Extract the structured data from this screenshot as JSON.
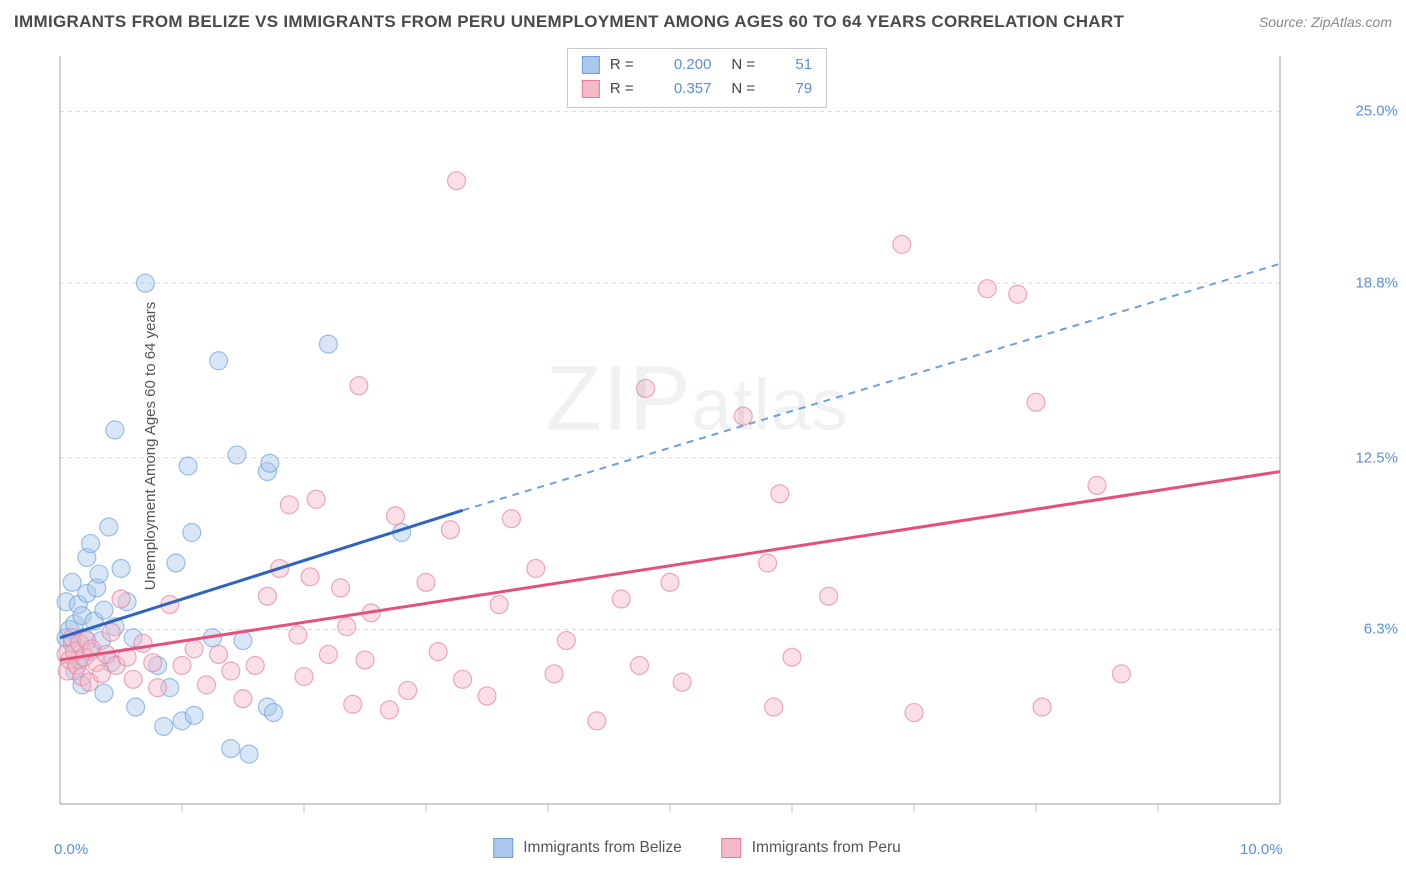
{
  "title": "IMMIGRANTS FROM BELIZE VS IMMIGRANTS FROM PERU UNEMPLOYMENT AMONG AGES 60 TO 64 YEARS CORRELATION CHART",
  "source": "Source: ZipAtlas.com",
  "y_axis_label": "Unemployment Among Ages 60 to 64 years",
  "watermark": "ZIPatlas",
  "chart": {
    "type": "scatter",
    "xlim": [
      0.0,
      10.0
    ],
    "ylim": [
      0.0,
      27.0
    ],
    "x_ticks": [
      0.0,
      10.0
    ],
    "x_tick_labels": [
      "0.0%",
      "10.0%"
    ],
    "x_minor_ticks": [
      1.0,
      2.0,
      3.0,
      4.0,
      5.0,
      6.0,
      7.0,
      8.0,
      9.0
    ],
    "y_ticks": [
      6.3,
      12.5,
      18.8,
      25.0
    ],
    "y_tick_labels": [
      "6.3%",
      "12.5%",
      "18.8%",
      "25.0%"
    ],
    "background_color": "#ffffff",
    "grid_color": "#d9d9d9",
    "grid_dash": "4 4",
    "axis_color": "#bfbfbf",
    "marker_radius": 9,
    "marker_opacity": 0.45,
    "label_color": "#5b8fd6",
    "label_fontsize": 15
  },
  "legend_top": {
    "rows": [
      {
        "swatch_fill": "#a9c7ec",
        "swatch_stroke": "#6fa0dd",
        "r_label": "R =",
        "r_value": "0.200",
        "n_label": "N =",
        "n_value": "51"
      },
      {
        "swatch_fill": "#f3b9c7",
        "swatch_stroke": "#e37f9b",
        "r_label": "R =",
        "r_value": "0.357",
        "n_label": "N =",
        "n_value": "79"
      }
    ]
  },
  "legend_bottom": {
    "items": [
      {
        "swatch_fill": "#a9c7ec",
        "swatch_stroke": "#6fa0dd",
        "label": "Immigrants from Belize"
      },
      {
        "swatch_fill": "#f3b9c7",
        "swatch_stroke": "#e37f9b",
        "label": "Immigrants from Peru"
      }
    ]
  },
  "series": [
    {
      "name": "Immigrants from Belize",
      "color_fill": "#a9c7ec",
      "color_stroke": "#6fa0dd",
      "trend": {
        "solid": {
          "x1": 0.0,
          "y1": 6.0,
          "x2": 3.3,
          "y2": 10.6,
          "stroke": "#2e64c0",
          "width": 3
        },
        "dashed": {
          "x1": 3.3,
          "y1": 10.6,
          "x2": 10.0,
          "y2": 19.5,
          "stroke": "#6fa0dd",
          "width": 2,
          "dash": "7 6"
        }
      },
      "points": [
        [
          0.05,
          6.0
        ],
        [
          0.05,
          7.3
        ],
        [
          0.08,
          6.3
        ],
        [
          0.1,
          5.8
        ],
        [
          0.1,
          8.0
        ],
        [
          0.12,
          6.5
        ],
        [
          0.12,
          4.8
        ],
        [
          0.15,
          7.2
        ],
        [
          0.15,
          5.2
        ],
        [
          0.18,
          6.8
        ],
        [
          0.18,
          4.3
        ],
        [
          0.2,
          6.0
        ],
        [
          0.22,
          7.6
        ],
        [
          0.22,
          8.9
        ],
        [
          0.25,
          5.5
        ],
        [
          0.25,
          9.4
        ],
        [
          0.28,
          6.6
        ],
        [
          0.3,
          7.8
        ],
        [
          0.32,
          8.3
        ],
        [
          0.34,
          5.9
        ],
        [
          0.36,
          4.0
        ],
        [
          0.36,
          7.0
        ],
        [
          0.4,
          10.0
        ],
        [
          0.42,
          5.1
        ],
        [
          0.45,
          6.4
        ],
        [
          0.45,
          13.5
        ],
        [
          0.5,
          8.5
        ],
        [
          0.55,
          7.3
        ],
        [
          0.6,
          6.0
        ],
        [
          0.62,
          3.5
        ],
        [
          0.7,
          18.8
        ],
        [
          0.8,
          5.0
        ],
        [
          0.85,
          2.8
        ],
        [
          0.9,
          4.2
        ],
        [
          0.95,
          8.7
        ],
        [
          1.0,
          3.0
        ],
        [
          1.05,
          12.2
        ],
        [
          1.08,
          9.8
        ],
        [
          1.1,
          3.2
        ],
        [
          1.25,
          6.0
        ],
        [
          1.3,
          16.0
        ],
        [
          1.4,
          2.0
        ],
        [
          1.45,
          12.6
        ],
        [
          1.5,
          5.9
        ],
        [
          1.55,
          1.8
        ],
        [
          1.7,
          12.0
        ],
        [
          1.7,
          3.5
        ],
        [
          1.72,
          12.3
        ],
        [
          1.75,
          3.3
        ],
        [
          2.2,
          16.6
        ],
        [
          2.8,
          9.8
        ]
      ]
    },
    {
      "name": "Immigrants from Peru",
      "color_fill": "#f3b9c7",
      "color_stroke": "#e37f9b",
      "trend": {
        "solid": {
          "x1": 0.0,
          "y1": 5.2,
          "x2": 10.0,
          "y2": 12.0,
          "stroke": "#e54f7b",
          "width": 3
        }
      },
      "points": [
        [
          0.05,
          5.4
        ],
        [
          0.06,
          4.8
        ],
        [
          0.08,
          5.2
        ],
        [
          0.1,
          6.0
        ],
        [
          0.12,
          5.5
        ],
        [
          0.14,
          5.0
        ],
        [
          0.16,
          5.8
        ],
        [
          0.18,
          4.6
        ],
        [
          0.2,
          5.3
        ],
        [
          0.22,
          5.9
        ],
        [
          0.24,
          4.4
        ],
        [
          0.26,
          5.6
        ],
        [
          0.3,
          5.1
        ],
        [
          0.34,
          4.7
        ],
        [
          0.38,
          5.4
        ],
        [
          0.42,
          6.2
        ],
        [
          0.46,
          5.0
        ],
        [
          0.5,
          7.4
        ],
        [
          0.55,
          5.3
        ],
        [
          0.6,
          4.5
        ],
        [
          0.68,
          5.8
        ],
        [
          0.76,
          5.1
        ],
        [
          0.8,
          4.2
        ],
        [
          0.9,
          7.2
        ],
        [
          1.0,
          5.0
        ],
        [
          1.1,
          5.6
        ],
        [
          1.2,
          4.3
        ],
        [
          1.3,
          5.4
        ],
        [
          1.4,
          4.8
        ],
        [
          1.5,
          3.8
        ],
        [
          1.6,
          5.0
        ],
        [
          1.7,
          7.5
        ],
        [
          1.8,
          8.5
        ],
        [
          1.88,
          10.8
        ],
        [
          1.95,
          6.1
        ],
        [
          2.0,
          4.6
        ],
        [
          2.05,
          8.2
        ],
        [
          2.1,
          11.0
        ],
        [
          2.2,
          5.4
        ],
        [
          2.3,
          7.8
        ],
        [
          2.35,
          6.4
        ],
        [
          2.4,
          3.6
        ],
        [
          2.45,
          15.1
        ],
        [
          2.5,
          5.2
        ],
        [
          2.55,
          6.9
        ],
        [
          2.7,
          3.4
        ],
        [
          2.75,
          10.4
        ],
        [
          2.85,
          4.1
        ],
        [
          3.0,
          8.0
        ],
        [
          3.1,
          5.5
        ],
        [
          3.2,
          9.9
        ],
        [
          3.25,
          22.5
        ],
        [
          3.3,
          4.5
        ],
        [
          3.5,
          3.9
        ],
        [
          3.6,
          7.2
        ],
        [
          3.7,
          10.3
        ],
        [
          3.9,
          8.5
        ],
        [
          4.05,
          4.7
        ],
        [
          4.15,
          5.9
        ],
        [
          4.4,
          3.0
        ],
        [
          4.6,
          7.4
        ],
        [
          4.75,
          5.0
        ],
        [
          4.8,
          15.0
        ],
        [
          5.0,
          8.0
        ],
        [
          5.1,
          4.4
        ],
        [
          5.6,
          14.0
        ],
        [
          5.8,
          8.7
        ],
        [
          5.85,
          3.5
        ],
        [
          5.9,
          11.2
        ],
        [
          6.0,
          5.3
        ],
        [
          6.3,
          7.5
        ],
        [
          6.9,
          20.2
        ],
        [
          7.0,
          3.3
        ],
        [
          7.6,
          18.6
        ],
        [
          7.85,
          18.4
        ],
        [
          8.0,
          14.5
        ],
        [
          8.05,
          3.5
        ],
        [
          8.5,
          11.5
        ],
        [
          8.7,
          4.7
        ]
      ]
    }
  ]
}
